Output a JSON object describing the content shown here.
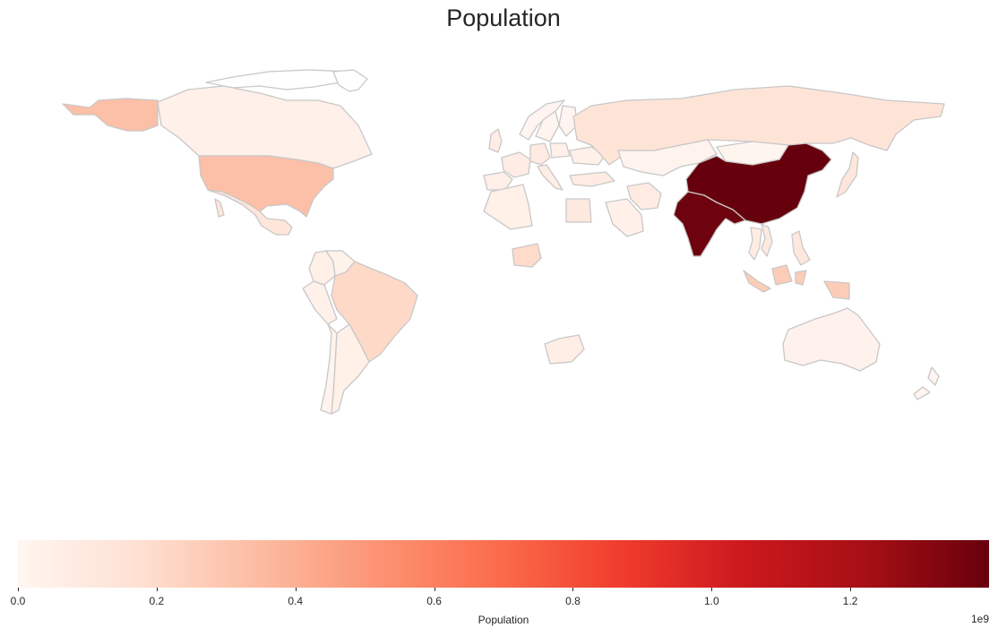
{
  "title": "Population",
  "colormap": {
    "name": "Reds",
    "stops": [
      "#fff5f0",
      "#fee0d2",
      "#fcbba1",
      "#fc9272",
      "#fb6a4a",
      "#ef3b2c",
      "#cb181d",
      "#a50f15",
      "#67000d"
    ]
  },
  "border_color": "#c8c8c8",
  "colorbar": {
    "label": "Population",
    "exponent_label": "1e9",
    "min": 0,
    "max": 1400000000.0,
    "ticks": [
      {
        "value": 0.0,
        "label": "0.0"
      },
      {
        "value": 0.2,
        "label": "0.2"
      },
      {
        "value": 0.4,
        "label": "0.4"
      },
      {
        "value": 0.6,
        "label": "0.6"
      },
      {
        "value": 0.8,
        "label": "0.8"
      },
      {
        "value": 1.0,
        "label": "1.0"
      },
      {
        "value": 1.2,
        "label": "1.2"
      }
    ]
  },
  "countries": [
    {
      "id": "china",
      "population": 1400000000.0
    },
    {
      "id": "india",
      "population": 1380000000.0
    },
    {
      "id": "usa",
      "population": 330000000.0
    },
    {
      "id": "indonesia",
      "population": 270000000.0
    },
    {
      "id": "brazil",
      "population": 210000000.0
    },
    {
      "id": "nigeria",
      "population": 200000000.0
    },
    {
      "id": "russia",
      "population": 145000000.0
    },
    {
      "id": "mexico",
      "population": 128000000.0
    },
    {
      "id": "philippines",
      "population": 110000000.0
    },
    {
      "id": "egypt",
      "population": 100000000.0
    },
    {
      "id": "vietnam",
      "population": 97000000.0
    },
    {
      "id": "japan",
      "population": 126000000.0
    },
    {
      "id": "thailand",
      "population": 70000000.0
    },
    {
      "id": "iran",
      "population": 84000000.0
    },
    {
      "id": "turkey",
      "population": 84000000.0
    },
    {
      "id": "germany",
      "population": 83000000.0
    },
    {
      "id": "france",
      "population": 67000000.0
    },
    {
      "id": "uk",
      "population": 67000000.0
    },
    {
      "id": "italy",
      "population": 60000000.0
    },
    {
      "id": "south-africa",
      "population": 59000000.0
    },
    {
      "id": "colombia",
      "population": 51000000.0
    },
    {
      "id": "spain",
      "population": 47000000.0
    },
    {
      "id": "argentina",
      "population": 45000000.0
    },
    {
      "id": "algeria",
      "population": 44000000.0
    },
    {
      "id": "ukraine",
      "population": 41000000.0
    },
    {
      "id": "canada",
      "population": 38000000.0
    },
    {
      "id": "poland",
      "population": 38000000.0
    },
    {
      "id": "saudi-arabia",
      "population": 35000000.0
    },
    {
      "id": "peru",
      "population": 33000000.0
    },
    {
      "id": "venezuela",
      "population": 28000000.0
    },
    {
      "id": "australia",
      "population": 26000000.0
    },
    {
      "id": "kazakhstan",
      "population": 19000000.0
    },
    {
      "id": "chile",
      "population": 19000000.0
    },
    {
      "id": "sweden",
      "population": 10000000.0
    },
    {
      "id": "norway",
      "population": 5400000.0
    },
    {
      "id": "finland",
      "population": 5500000.0
    },
    {
      "id": "new-zealand",
      "population": 5000000.0
    },
    {
      "id": "mongolia",
      "population": 3300000.0
    }
  ]
}
